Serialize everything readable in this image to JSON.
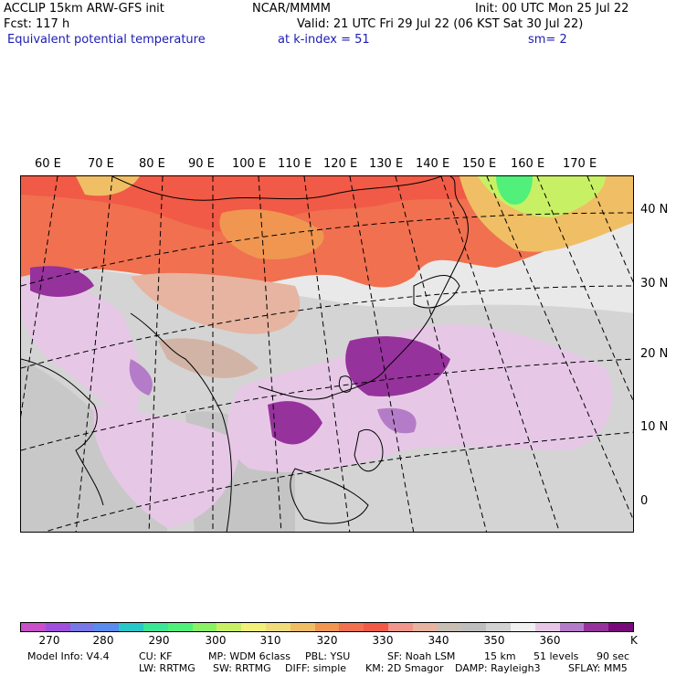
{
  "header": {
    "model": "ACCLIP 15km ARW-GFS init",
    "org": "NCAR/MMMM",
    "init": "Init: 00 UTC Mon 25 Jul 22",
    "fcst": "Fcst:  117 h",
    "valid": "Valid: 21 UTC Fri 29 Jul 22 (06 KST Sat 30 Jul 22)",
    "field": "Equivalent potential temperature",
    "level": "at k-index =  51",
    "smoothing": "sm= 2"
  },
  "map": {
    "lon_labels": [
      "60 E",
      "70 E",
      "80 E",
      "90 E",
      "100 E",
      "110 E",
      "120 E",
      "130 E",
      "140 E",
      "150 E",
      "160 E",
      "170 E"
    ],
    "lat_labels": [
      "40 N",
      "30 N",
      "20 N",
      "10 N",
      "0"
    ]
  },
  "colorbar": {
    "colors": [
      "#c850c8",
      "#a050dc",
      "#7878e6",
      "#5a8cf0",
      "#28c8c8",
      "#3ce696",
      "#50f07a",
      "#8cf064",
      "#c8f064",
      "#f0f07a",
      "#f0dc7a",
      "#f0be64",
      "#f09650",
      "#f07050",
      "#f05a46",
      "#f0968c",
      "#e6b4a0",
      "#c8beb4",
      "#bebebe",
      "#d2d2d2",
      "#f0f0f0",
      "#e6c8e6",
      "#b47cc8",
      "#96329c",
      "#780a7a"
    ],
    "tick_labels": [
      "270",
      "280",
      "290",
      "300",
      "310",
      "320",
      "330",
      "340",
      "350",
      "360"
    ],
    "unit": "K"
  },
  "footer": {
    "line1": [
      "Model Info: V4.4",
      "CU: KF",
      "MP: WDM 6class",
      "PBL: YSU",
      "SF: Noah LSM",
      "15 km",
      "51 levels",
      "90 sec"
    ],
    "line2": [
      "LW: RRTMG",
      "SW: RRTMG",
      "DIFF: simple",
      "KM: 2D Smagor",
      "DAMP: Rayleigh3",
      "SFLAY: MM5"
    ]
  }
}
